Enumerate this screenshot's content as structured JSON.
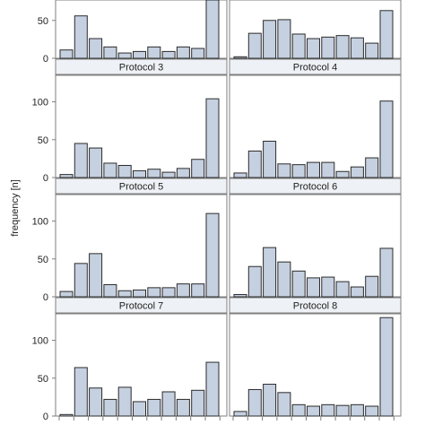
{
  "chart_data": {
    "type": "bar",
    "ylabel": "frequency [n]",
    "style": {
      "bar_fill": "#c5d0e0",
      "bar_stroke": "#2b2b2b",
      "strip_fill": "#eef1f5",
      "frame": "#7f7f7f",
      "text": "#222222"
    },
    "panel_rows": [
      {
        "yticks": [
          0,
          50
        ],
        "ymax": 80,
        "panels": [
          {
            "title": "",
            "values": [
              11,
              56,
              26,
              15,
              7,
              9,
              15,
              9,
              15,
              13,
              80
            ]
          },
          {
            "title": "",
            "values": [
              2,
              33,
              50,
              51,
              32,
              26,
              28,
              30,
              27,
              20,
              63
            ]
          }
        ]
      },
      {
        "yticks": [
          0,
          50,
          100
        ],
        "ymax": 135,
        "panels": [
          {
            "title": "Protocol 3",
            "values": [
              4,
              45,
              39,
              19,
              16,
              9,
              11,
              7,
              12,
              24,
              104
            ]
          },
          {
            "title": "Protocol 4",
            "values": [
              6,
              35,
              48,
              18,
              17,
              20,
              20,
              8,
              14,
              26,
              101
            ]
          }
        ]
      },
      {
        "yticks": [
          0,
          50,
          100
        ],
        "ymax": 135,
        "panels": [
          {
            "title": "Protocol 5",
            "values": [
              7,
              44,
              57,
              16,
              8,
              9,
              12,
              12,
              17,
              17,
              110
            ]
          },
          {
            "title": "Protocol 6",
            "values": [
              3,
              40,
              65,
              46,
              34,
              25,
              26,
              20,
              13,
              27,
              64
            ]
          }
        ]
      },
      {
        "yticks": [
          0,
          50,
          100
        ],
        "ymax": 135,
        "panels": [
          {
            "title": "Protocol 7",
            "values": [
              2,
              64,
              37,
              22,
              38,
              19,
              22,
              32,
              22,
              34,
              71
            ]
          },
          {
            "title": "Protocol 8",
            "values": [
              6,
              35,
              42,
              31,
              15,
              13,
              15,
              14,
              15,
              13,
              130
            ]
          }
        ]
      }
    ]
  }
}
